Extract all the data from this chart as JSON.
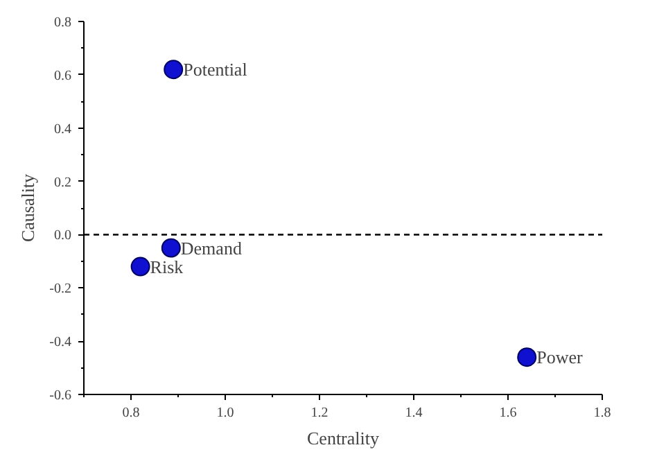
{
  "chart_data": {
    "type": "scatter",
    "xlabel": "Centrality",
    "ylabel": "Causality",
    "x": [
      0.89,
      0.885,
      0.82,
      1.64
    ],
    "series": [
      {
        "color": "#1010d0",
        "values": [
          0.62,
          -0.05,
          -0.12,
          -0.46
        ]
      }
    ],
    "marker": "circle",
    "annotations": [
      {
        "text": "Potential",
        "x": 0.89,
        "y": 0.62
      },
      {
        "text": "Demand",
        "x": 0.885,
        "y": -0.05
      },
      {
        "text": "Risk",
        "x": 0.82,
        "y": -0.12
      },
      {
        "text": "Power",
        "x": 1.64,
        "y": -0.46
      }
    ],
    "ref_lines": [
      {
        "axis": "y",
        "value": 0,
        "color": "#000000",
        "line_style": "dashed"
      }
    ],
    "xlim": [
      0.7,
      1.8
    ],
    "ylim": [
      -0.6,
      0.8
    ],
    "xticks": [
      0.8,
      {
        "value": 1,
        "label": "1.0"
      },
      1.2,
      1.4,
      1.6,
      1.8
    ],
    "yticks": [
      -0.6,
      -0.4,
      -0.2,
      {
        "value": 0,
        "label": "0.0"
      },
      0.2,
      0.4,
      0.6,
      0.8
    ],
    "grid": false
  }
}
